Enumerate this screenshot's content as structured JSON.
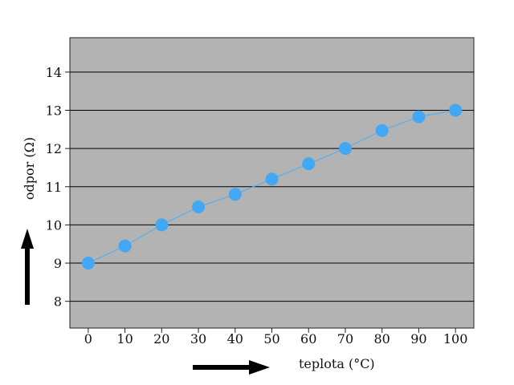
{
  "chart_data": {
    "type": "line",
    "x": [
      0,
      10,
      20,
      30,
      40,
      50,
      60,
      70,
      80,
      90,
      100
    ],
    "series": [
      {
        "values": [
          9.0,
          9.45,
          10.0,
          10.47,
          10.8,
          11.2,
          11.6,
          12.0,
          12.47,
          12.83,
          13.0
        ]
      }
    ],
    "xticks": [
      0,
      10,
      20,
      30,
      40,
      50,
      60,
      70,
      80,
      90,
      100
    ],
    "yticks": [
      8,
      9,
      10,
      11,
      12,
      13,
      14
    ],
    "xlim": [
      -5,
      105
    ],
    "ylim": [
      7.3,
      14.9
    ],
    "xlabel": "teplota (°C)",
    "ylabel": "odpor (Ω)",
    "grid": "horizontal",
    "colors": {
      "plot_background": "#b3b3b3",
      "gridline": "#000000",
      "series_line": "#58aeea",
      "marker": "#42a8f4",
      "arrow": "#000000"
    }
  }
}
